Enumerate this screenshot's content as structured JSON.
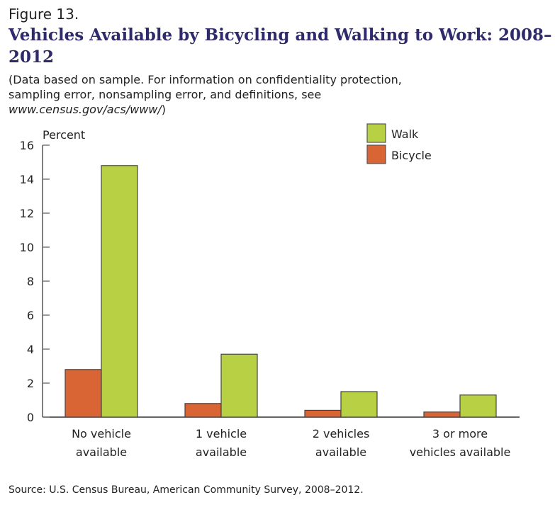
{
  "figure_label": "Figure 13.",
  "title": "Vehicles Available by Bicycling and Walking to Work: 2008–2012",
  "note_line1": "(Data based on sample. For information on confidentiality protection,",
  "note_line2": "sampling error, nonsampling error, and definitions, see",
  "note_url": "www.census.gov/acs/www/",
  "note_close": ")",
  "source": "Source: U.S. Census Bureau, American Community Survey, 2008–2012.",
  "chart_data": {
    "type": "bar",
    "ylabel": "Percent",
    "ylim": [
      0,
      16
    ],
    "yticks": [
      0,
      2,
      4,
      6,
      8,
      10,
      12,
      14,
      16
    ],
    "categories": [
      [
        "No vehicle",
        "available"
      ],
      [
        "1 vehicle",
        "available"
      ],
      [
        "2 vehicles",
        "available"
      ],
      [
        "3 or more",
        "vehicles available"
      ]
    ],
    "series": [
      {
        "name": "Bicycle",
        "color": "#d96434",
        "values": [
          2.8,
          0.8,
          0.4,
          0.3
        ]
      },
      {
        "name": "Walk",
        "color": "#b8d043",
        "values": [
          14.8,
          3.7,
          1.5,
          1.3
        ]
      }
    ],
    "legend": {
      "placement": "top-right",
      "order": [
        "Walk",
        "Bicycle"
      ]
    },
    "grid": false
  }
}
